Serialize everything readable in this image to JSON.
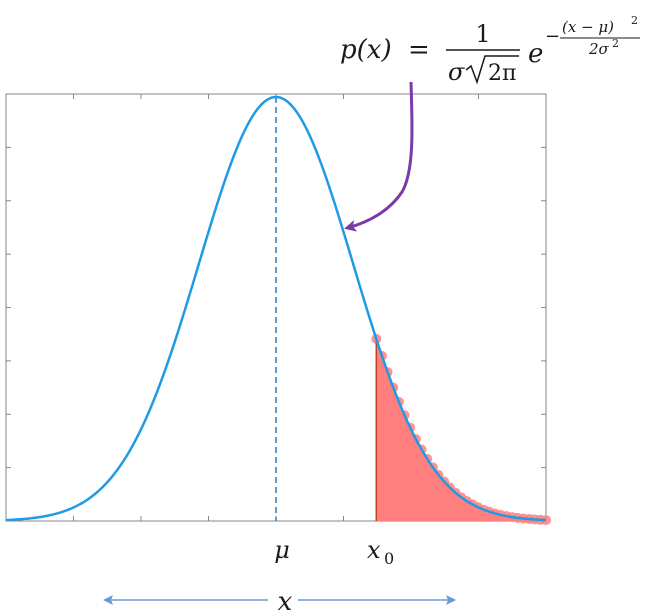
{
  "formula": {
    "lhs": "p(x)",
    "equals": "=",
    "numerator": "1",
    "denominator_sigma": "σ",
    "denominator_sqrt": "2π",
    "base": "e",
    "exp_sign": "−",
    "exp_numerator": "(x − μ)",
    "exp_numerator_power": "2",
    "exp_denominator": "2σ",
    "exp_denominator_power": "2"
  },
  "axis_labels": {
    "mu": "μ",
    "x0_base": "x",
    "x0_sub": "0",
    "x": "x"
  },
  "colors": {
    "curve": "#1f9be6",
    "arrow": "#7a3aa8",
    "tail_fill": "#ff7f7f",
    "tail_edge": "#c0431f",
    "mean_line": "#2f78c4",
    "axis_arrow": "#6a9ad6",
    "frame": "#888888"
  },
  "chart_data": {
    "type": "area",
    "curve": "normal-pdf",
    "mean": 0,
    "std": 1,
    "xlim": [
      -3.5,
      3.5
    ],
    "ylim": [
      0,
      1
    ],
    "shaded_from": 1.3,
    "shaded_to": 3.5,
    "mean_line": true,
    "grid": false
  }
}
